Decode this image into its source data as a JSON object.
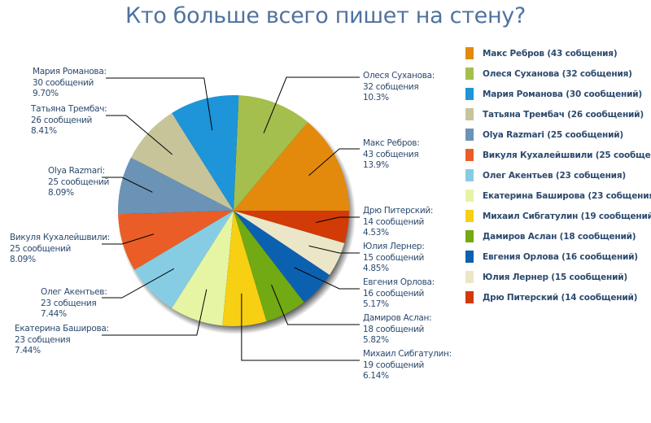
{
  "chart_data": {
    "type": "pie",
    "title": "Кто больше всего пишет на стену?",
    "slices": [
      {
        "name": "Макс Ребров",
        "value": 43,
        "unit": "собщения",
        "percent": "13.9%",
        "color": "#e38a0c",
        "legend": "Макс Ребров (43 собщения)"
      },
      {
        "name": "Олеся Суханова",
        "value": 32,
        "unit": "собщения",
        "percent": "10.3%",
        "color": "#a4bf4e",
        "legend": "Олеся Суханова (32 собщения)"
      },
      {
        "name": "Мария Романова",
        "value": 30,
        "unit": "сообщений",
        "percent": "9.70%",
        "color": "#1d95d8",
        "legend": "Мария Романова (30 сообщений)"
      },
      {
        "name": "Татьяна Трембач",
        "value": 26,
        "unit": "сообщений",
        "percent": "8.41%",
        "color": "#c7c49a",
        "legend": "Татьяна Трембач (26 сообщений)"
      },
      {
        "name": "Olya Razmari",
        "value": 25,
        "unit": "сообщений",
        "percent": "8.09%",
        "color": "#6b93b6",
        "legend": "Olya Razmari (25 сообщений)"
      },
      {
        "name": "Викуля Кухалейшвили",
        "value": 25,
        "unit": "сообщений",
        "percent": "8.09%",
        "color": "#ea5d26",
        "legend": "Викуля Кухалейшвили (25 сообщени"
      },
      {
        "name": "Олег Акентьев",
        "value": 23,
        "unit": "собщения",
        "percent": "7.44%",
        "color": "#86cde3",
        "legend": "Олег Акентьев (23 собщения)"
      },
      {
        "name": "Екатерина Баширова",
        "value": 23,
        "unit": "собщения",
        "percent": "7.44%",
        "color": "#e6f5a4",
        "legend": "Екатерина Баширова (23 собщения)"
      },
      {
        "name": "Михаил Сибгатулин",
        "value": 19,
        "unit": "сообщений",
        "percent": "6.14%",
        "color": "#f7cf13",
        "legend": "Михаил Сибгатулин (19 сообщений)"
      },
      {
        "name": "Дамиров Аслан",
        "value": 18,
        "unit": "сообщений",
        "percent": "5.82%",
        "color": "#71aa12",
        "legend": "Дамиров Аслан (18 сообщений)"
      },
      {
        "name": "Евгения Орлова",
        "value": 16,
        "unit": "сообщений",
        "percent": "5.17%",
        "color": "#0b61b0",
        "legend": "Евгения Орлова (16 сообщений)"
      },
      {
        "name": "Юлия Лернер",
        "value": 15,
        "unit": "сообщений",
        "percent": "4.85%",
        "color": "#ebe6c8",
        "legend": "Юлия Лернер (15 сообщений)"
      },
      {
        "name": "Дрю Питерский",
        "value": 14,
        "unit": "сообщений",
        "percent": "4.53%",
        "color": "#d23a07",
        "legend": "Дрю Питерский (14 сообщений)"
      }
    ],
    "legend_position": "right"
  },
  "labels": [
    {
      "line1": "Макс Ребров:",
      "line2": "43 собщения",
      "line3": "13.9%"
    },
    {
      "line1": "Олеся Суханова:",
      "line2": "32 собщения",
      "line3": "10.3%"
    },
    {
      "line1": "Мария Романова:",
      "line2": "30 сообщений",
      "line3": "9.70%"
    },
    {
      "line1": "Татьяна Трембач:",
      "line2": "26 сообщений",
      "line3": "8.41%"
    },
    {
      "line1": "Olya Razmari:",
      "line2": "25 сообщений",
      "line3": "8.09%"
    },
    {
      "line1": "Викуля Кухалейшвили:",
      "line2": "25 сообщений",
      "line3": "8.09%"
    },
    {
      "line1": "Олег Акентьев:",
      "line2": "23 собщения",
      "line3": "7.44%"
    },
    {
      "line1": "Екатерина Баширова:",
      "line2": "23 собщения",
      "line3": "7.44%"
    },
    {
      "line1": "Михаил Сибгатулин:",
      "line2": "19 сообщений",
      "line3": "6.14%"
    },
    {
      "line1": "Дамиров Аслан:",
      "line2": "18 сообщений",
      "line3": "5.82%"
    },
    {
      "line1": "Евгения Орлова:",
      "line2": "16 сообщений",
      "line3": "5.17%"
    },
    {
      "line1": "Юлия Лернер:",
      "line2": "15 сообщений",
      "line3": "4.85%"
    },
    {
      "line1": "Дрю Питерский:",
      "line2": "14 сообщений",
      "line3": "4.53%"
    }
  ]
}
